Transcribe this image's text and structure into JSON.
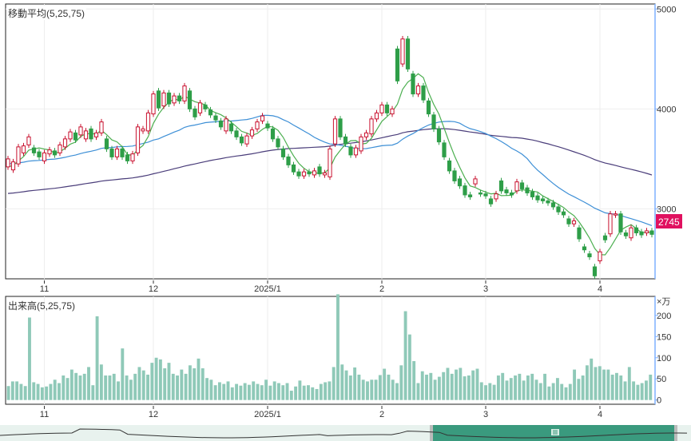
{
  "price_chart": {
    "title": "移動平均(5,25,75)",
    "y_ticks": [
      "5000",
      "4000",
      "3000"
    ],
    "current_price": "2745",
    "x_ticks": [
      "11",
      "12",
      "2025/1",
      "2",
      "3",
      "4"
    ]
  },
  "volume_chart": {
    "title": "出来高(5,25,75)",
    "unit": "×万",
    "y_ticks": [
      "200",
      "150",
      "100",
      "50",
      "0"
    ],
    "x_ticks": [
      "11",
      "12",
      "2025/1",
      "2",
      "3",
      "4"
    ]
  },
  "colors": {
    "up": "#c8102e",
    "down": "#2e9e48",
    "ma5": "#4caf50",
    "ma25": "#3d8fd6",
    "ma75": "#4a3d7a",
    "volume": "#8fc9b8",
    "price_badge": "#e0115f",
    "axis": "#7fb0ff"
  },
  "chart_data": [
    {
      "type": "candlestick",
      "title": "移動平均(5,25,75)",
      "series": [
        {
          "name": "5"
        },
        {
          "name": "25"
        },
        {
          "name": "75"
        }
      ],
      "ylim": [
        2300,
        5050
      ],
      "x_ticks": [
        "11",
        "12",
        "2025/1",
        "2",
        "3",
        "4"
      ],
      "y_ticks": [
        5000,
        4000,
        3000
      ],
      "last_value": 2745,
      "candles": [
        [
          3420,
          3500
        ],
        [
          3390,
          3470
        ],
        [
          3450,
          3620
        ],
        [
          3560,
          3630
        ],
        [
          3640,
          3720
        ],
        [
          3610,
          3560
        ],
        [
          3570,
          3520
        ],
        [
          3480,
          3560
        ],
        [
          3550,
          3590
        ],
        [
          3580,
          3540
        ],
        [
          3560,
          3640
        ],
        [
          3620,
          3700
        ],
        [
          3700,
          3770
        ],
        [
          3760,
          3690
        ],
        [
          3740,
          3820
        ],
        [
          3700,
          3780
        ],
        [
          3800,
          3700
        ],
        [
          3720,
          3760
        ],
        [
          3760,
          3870
        ],
        [
          3700,
          3600
        ],
        [
          3600,
          3520
        ],
        [
          3520,
          3600
        ],
        [
          3600,
          3520
        ],
        [
          3540,
          3480
        ],
        [
          3480,
          3550
        ],
        [
          3560,
          3820
        ],
        [
          3780,
          3800
        ],
        [
          3780,
          3960
        ],
        [
          3950,
          4150
        ],
        [
          4180,
          4010
        ],
        [
          4030,
          4160
        ],
        [
          4160,
          4050
        ],
        [
          4060,
          4130
        ],
        [
          4130,
          4080
        ],
        [
          4080,
          4230
        ],
        [
          4180,
          4000
        ],
        [
          4000,
          3920
        ],
        [
          3960,
          4060
        ],
        [
          4040,
          4000
        ],
        [
          3990,
          3940
        ],
        [
          3930,
          3890
        ],
        [
          3880,
          3820
        ],
        [
          3780,
          3900
        ],
        [
          3850,
          3780
        ],
        [
          3780,
          3720
        ],
        [
          3720,
          3660
        ],
        [
          3650,
          3730
        ],
        [
          3730,
          3790
        ],
        [
          3800,
          3870
        ],
        [
          3880,
          3930
        ],
        [
          3850,
          3810
        ],
        [
          3800,
          3700
        ],
        [
          3700,
          3620
        ],
        [
          3600,
          3520
        ],
        [
          3520,
          3440
        ],
        [
          3440,
          3370
        ],
        [
          3370,
          3330
        ],
        [
          3330,
          3370
        ],
        [
          3370,
          3350
        ],
        [
          3340,
          3380
        ],
        [
          3420,
          3350
        ],
        [
          3340,
          3360
        ],
        [
          3320,
          3600
        ],
        [
          3650,
          3900
        ],
        [
          3900,
          3720
        ],
        [
          3720,
          3650
        ],
        [
          3620,
          3540
        ],
        [
          3540,
          3610
        ],
        [
          3580,
          3720
        ],
        [
          3720,
          3760
        ],
        [
          3750,
          3900
        ],
        [
          3900,
          3960
        ],
        [
          3960,
          4040
        ],
        [
          4040,
          3960
        ],
        [
          3950,
          4000
        ],
        [
          4600,
          4280
        ],
        [
          4450,
          4700
        ],
        [
          4700,
          4400
        ],
        [
          4350,
          4150
        ],
        [
          4150,
          4230
        ],
        [
          4230,
          4090
        ],
        [
          4080,
          3950
        ],
        [
          3940,
          3800
        ],
        [
          3800,
          3670
        ],
        [
          3660,
          3520
        ],
        [
          3480,
          3380
        ],
        [
          3380,
          3280
        ],
        [
          3300,
          3230
        ],
        [
          3230,
          3140
        ],
        [
          3140,
          3120
        ],
        [
          3250,
          3300
        ],
        [
          3160,
          3150
        ],
        [
          3150,
          3130
        ],
        [
          3100,
          3050
        ],
        [
          3100,
          3150
        ],
        [
          3280,
          3180
        ],
        [
          3190,
          3160
        ],
        [
          3160,
          3140
        ],
        [
          3180,
          3270
        ],
        [
          3260,
          3200
        ],
        [
          3210,
          3160
        ],
        [
          3170,
          3120
        ],
        [
          3130,
          3090
        ],
        [
          3100,
          3080
        ],
        [
          3080,
          3060
        ],
        [
          3060,
          3020
        ],
        [
          3020,
          2970
        ],
        [
          2970,
          2940
        ],
        [
          2900,
          2850
        ],
        [
          2850,
          2880
        ],
        [
          2810,
          2700
        ],
        [
          2620,
          2590
        ],
        [
          2550,
          2520
        ],
        [
          2420,
          2330
        ],
        [
          2480,
          2570
        ],
        [
          2730,
          2690
        ],
        [
          2750,
          2950
        ],
        [
          2940,
          2950
        ],
        [
          2950,
          2770
        ],
        [
          2760,
          2730
        ],
        [
          2710,
          2810
        ],
        [
          2810,
          2760
        ],
        [
          2770,
          2740
        ],
        [
          2760,
          2780
        ],
        [
          2780,
          2745
        ]
      ]
    },
    {
      "type": "bar",
      "title": "出来高(5,25,75)",
      "unit": "×万",
      "ylim": [
        -10,
        245
      ],
      "x_ticks": [
        "11",
        "12",
        "2025/1",
        "2",
        "3",
        "4"
      ],
      "y_ticks": [
        200,
        150,
        100,
        50,
        0
      ],
      "values": [
        33,
        44,
        44,
        38,
        33,
        195,
        42,
        38,
        30,
        32,
        38,
        48,
        40,
        58,
        52,
        72,
        64,
        58,
        62,
        78,
        35,
        198,
        84,
        58,
        58,
        62,
        44,
        122,
        58,
        48,
        62,
        78,
        70,
        60,
        88,
        100,
        96,
        75,
        88,
        62,
        58,
        72,
        62,
        82,
        75,
        98,
        75,
        52,
        48,
        35,
        42,
        38,
        44,
        30,
        38,
        34,
        40,
        36,
        44,
        38,
        35,
        48,
        34,
        44,
        40,
        35,
        40,
        22,
        32,
        46,
        34,
        35,
        30,
        26,
        38,
        42,
        44,
        78,
        250,
        84,
        70,
        58,
        77,
        60,
        48,
        44,
        48,
        48,
        59,
        74,
        60,
        48,
        40,
        82,
        210,
        155,
        92,
        40,
        68,
        60,
        64,
        48,
        55,
        66,
        76,
        62,
        72,
        76,
        56,
        58,
        70,
        74,
        42,
        35,
        40,
        36,
        58,
        64,
        46,
        52,
        58,
        62,
        46,
        58,
        62,
        48,
        40,
        62,
        32,
        40,
        52,
        38,
        30,
        38,
        72,
        50,
        58,
        82,
        98,
        78,
        80,
        72,
        72,
        60,
        64,
        58,
        44,
        78,
        44,
        36,
        40,
        46,
        60
      ]
    }
  ]
}
